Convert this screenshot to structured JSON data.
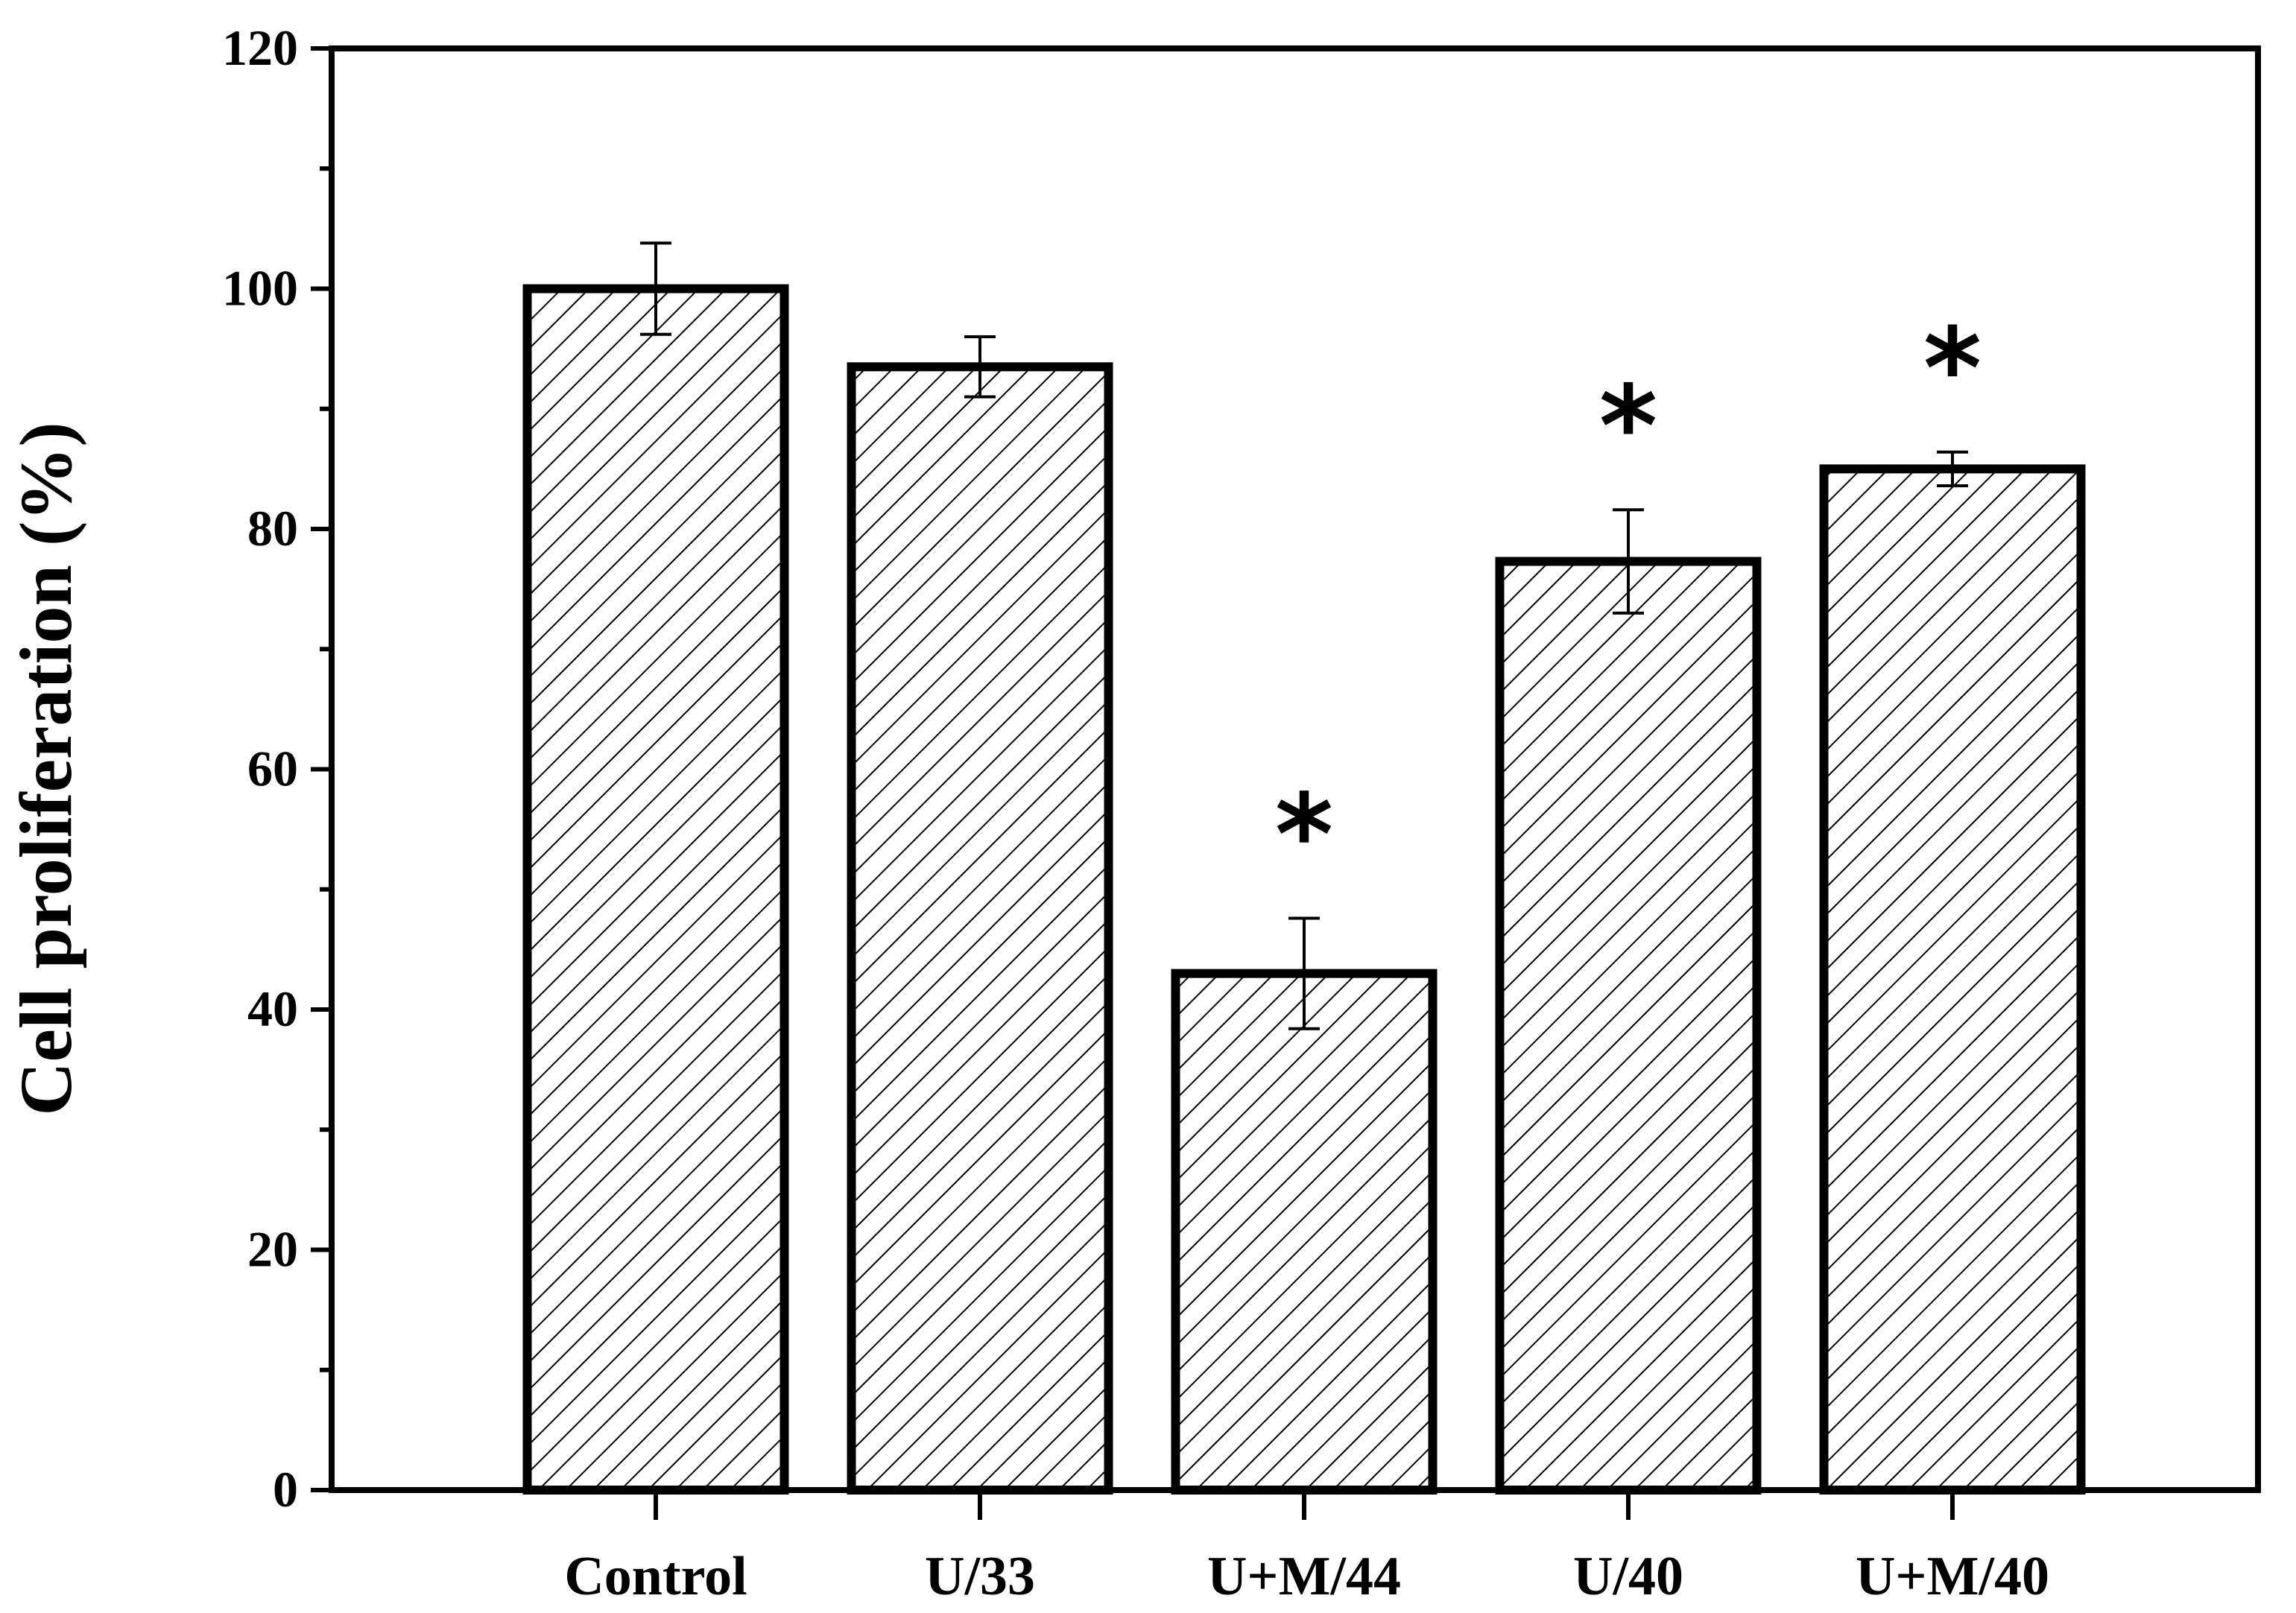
{
  "chart_data": {
    "type": "bar",
    "categories": [
      "Control",
      "U/33",
      "U+M/44",
      "U/40",
      "U+M/40"
    ],
    "values": [
      100,
      93.5,
      43,
      77.3,
      85
    ],
    "errors": [
      3.8,
      2.5,
      4.6,
      4.3,
      1.4
    ],
    "annotations": [
      "",
      "",
      "*",
      "*",
      "*"
    ],
    "ylabel": "Cell proliferation (%)",
    "xlabel": "",
    "title": "",
    "ylim": [
      0,
      120
    ],
    "yticks": [
      0,
      20,
      40,
      60,
      80,
      100,
      120
    ],
    "bar_fill": "hatched",
    "bar_color": "#000000",
    "grid": false,
    "legend": "none"
  }
}
